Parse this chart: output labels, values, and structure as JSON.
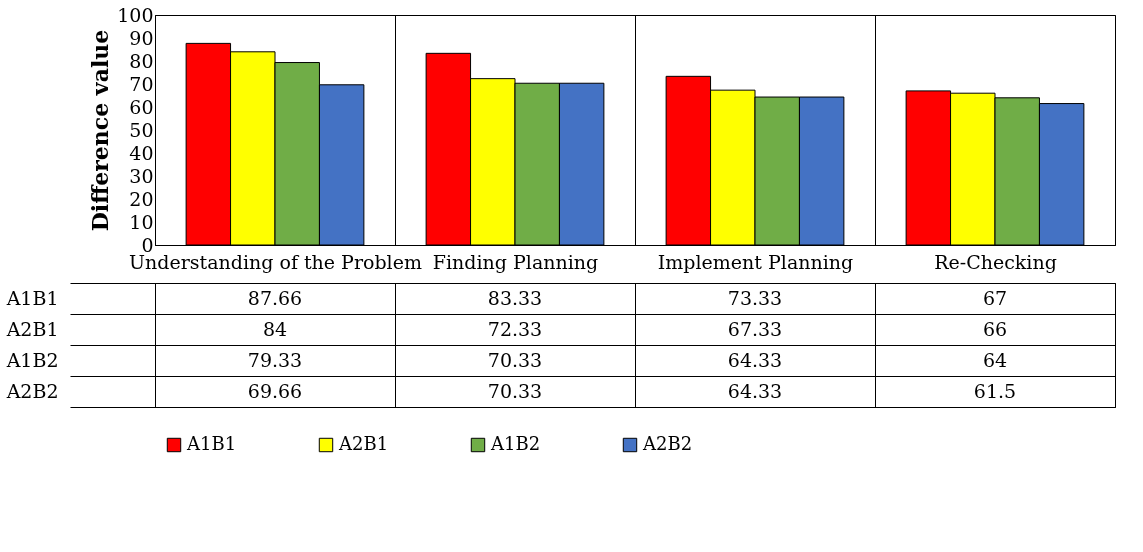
{
  "chart_data": {
    "type": "bar",
    "ylabel": "Difference value",
    "categories": [
      "Understanding of the Problem",
      "Finding Planning",
      "Implement Planning",
      "Re-Checking"
    ],
    "series": [
      {
        "name": "A1B1",
        "color": "#ff0000",
        "values": [
          87.66,
          83.33,
          73.33,
          67
        ]
      },
      {
        "name": "A2B1",
        "color": "#ffff00",
        "values": [
          84,
          72.33,
          67.33,
          66
        ]
      },
      {
        "name": "A1B2",
        "color": "#70ad47",
        "values": [
          79.33,
          70.33,
          64.33,
          64
        ]
      },
      {
        "name": "A2B2",
        "color": "#4472c4",
        "values": [
          69.66,
          70.33,
          64.33,
          61.5
        ]
      }
    ],
    "ylim": [
      0,
      100
    ],
    "yticks": [
      0,
      10,
      20,
      30,
      40,
      50,
      60,
      70,
      80,
      90,
      100
    ],
    "data_labels": true,
    "legend": "bottom"
  }
}
